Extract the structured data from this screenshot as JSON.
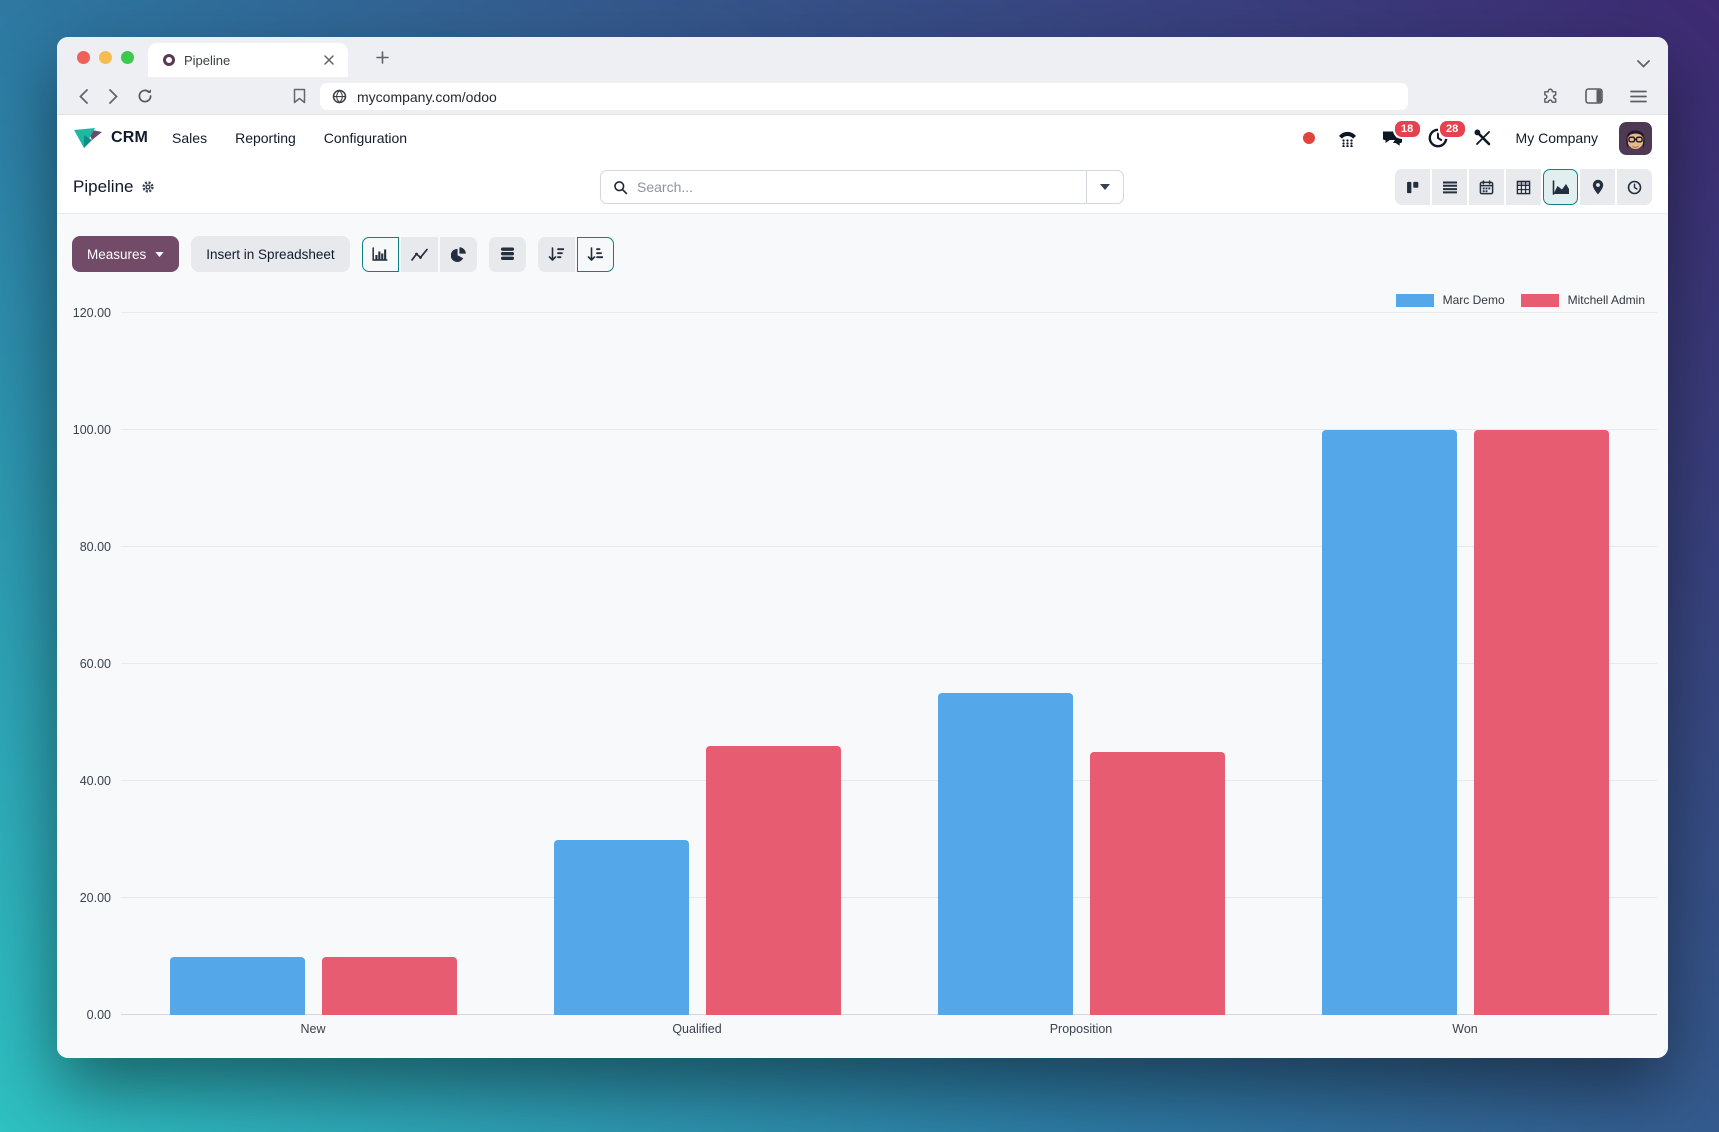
{
  "browser": {
    "tab_title": "Pipeline",
    "url": "mycompany.com/odoo"
  },
  "app_nav": {
    "app_name": "CRM",
    "menus": [
      "Sales",
      "Reporting",
      "Configuration"
    ],
    "message_badge": "18",
    "activity_badge": "28",
    "company_name": "My Company"
  },
  "control_panel": {
    "page_title": "Pipeline",
    "search_placeholder": "Search...",
    "views": [
      "kanban",
      "list",
      "calendar",
      "pivot",
      "graph",
      "map",
      "activity"
    ],
    "active_view": "graph"
  },
  "toolbar": {
    "measures_label": "Measures",
    "insert_spreadsheet_label": "Insert in Spreadsheet",
    "chart_types": [
      "bar",
      "line",
      "pie"
    ],
    "active_chart_type": "bar",
    "stacked_active": true,
    "active_sort": "ascending"
  },
  "chart_data": {
    "type": "bar",
    "categories": [
      "New",
      "Qualified",
      "Proposition",
      "Won"
    ],
    "series": [
      {
        "name": "Marc Demo",
        "color": "#54A7E8",
        "values": [
          10,
          30,
          55,
          100
        ]
      },
      {
        "name": "Mitchell Admin",
        "color": "#E85C72",
        "values": [
          10,
          46,
          45,
          100
        ]
      }
    ],
    "ylim": [
      0,
      120
    ],
    "ytick_step": 20,
    "ytick_labels": [
      "0.00",
      "20.00",
      "40.00",
      "60.00",
      "80.00",
      "100.00",
      "120.00"
    ],
    "grid": true,
    "legend_position": "top-right",
    "xlabel": "",
    "ylabel": ""
  },
  "colors": {
    "accent_teal": "#0F8186",
    "odoo_purple": "#714B67",
    "badge_red": "#E5414E",
    "bar_blue": "#54A7E8",
    "bar_red": "#E85C72"
  }
}
